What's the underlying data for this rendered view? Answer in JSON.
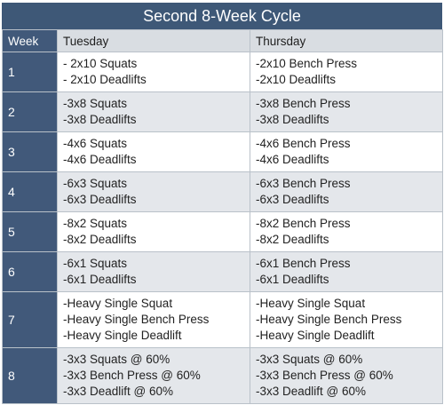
{
  "title": "Second 8-Week Cycle",
  "headers": {
    "week": "Week",
    "day1": "Tuesday",
    "day2": "Thursday"
  },
  "rows": [
    {
      "week": "1",
      "day1": [
        "- 2x10 Squats",
        "- 2x10 Deadlifts"
      ],
      "day2": [
        "-2x10 Bench Press",
        "-2x10 Deadlifts"
      ]
    },
    {
      "week": "2",
      "day1": [
        "-3x8 Squats",
        "-3x8 Deadlifts"
      ],
      "day2": [
        "-3x8 Bench Press",
        "-3x8 Deadlifts"
      ]
    },
    {
      "week": "3",
      "day1": [
        "-4x6 Squats",
        "-4x6 Deadlifts"
      ],
      "day2": [
        "-4x6 Bench Press",
        "-4x6 Deadlifts"
      ]
    },
    {
      "week": "4",
      "day1": [
        "-6x3 Squats",
        "-6x3 Deadlifts"
      ],
      "day2": [
        "-6x3 Bench Press",
        "-6x3 Deadlifts"
      ]
    },
    {
      "week": "5",
      "day1": [
        "-8x2 Squats",
        "-8x2 Deadlifts"
      ],
      "day2": [
        "-8x2 Bench Press",
        "-8x2 Deadlifts"
      ]
    },
    {
      "week": "6",
      "day1": [
        "-6x1 Squats",
        "-6x1 Deadlifts"
      ],
      "day2": [
        "-6x1 Bench Press",
        "-6x1 Deadlifts"
      ]
    },
    {
      "week": "7",
      "day1": [
        "-Heavy Single Squat",
        "-Heavy Single Bench Press",
        "-Heavy Single Deadlift"
      ],
      "day2": [
        "-Heavy Single Squat",
        "-Heavy Single Bench Press",
        "-Heavy Single Deadlift"
      ]
    },
    {
      "week": "8",
      "day1": [
        "-3x3 Squats @ 60%",
        "-3x3 Bench Press @ 60%",
        "-3x3 Deadlift @ 60%"
      ],
      "day2": [
        "-3x3 Squats @ 60%",
        "-3x3 Bench Press @ 60%",
        "-3x3 Deadlift @ 60%"
      ]
    }
  ],
  "colors": {
    "header_blue": "#41597a",
    "alt_row": "#e4e7eb"
  }
}
